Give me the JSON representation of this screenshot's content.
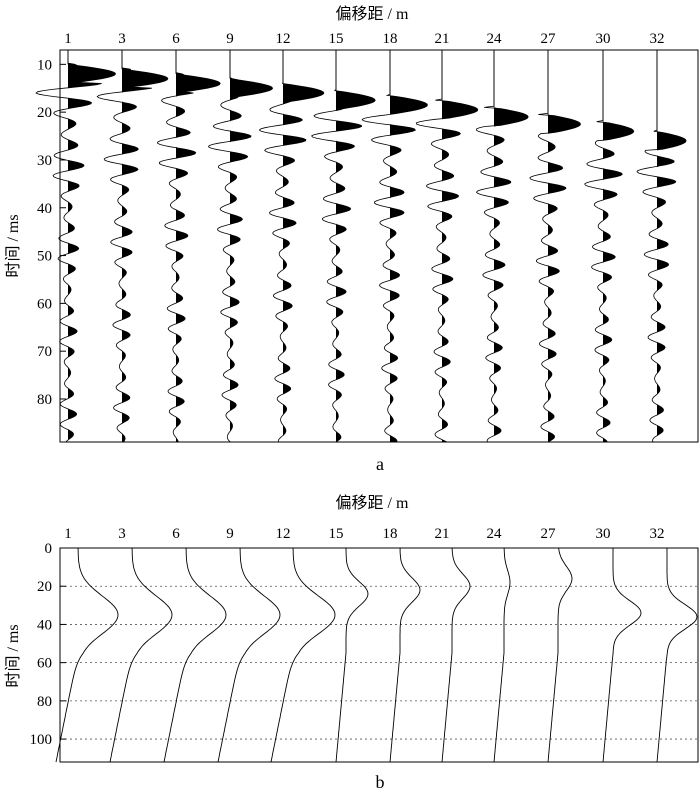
{
  "chart_data": [
    {
      "type": "line",
      "panel_label": "a",
      "xlabel": "偏移距 / m",
      "ylabel": "时间 / ms",
      "offsets": [
        "1",
        "3",
        "6",
        "9",
        "12",
        "15",
        "18",
        "21",
        "24",
        "27",
        "30",
        "32"
      ],
      "y_ticks": [
        10,
        20,
        30,
        40,
        50,
        60,
        70,
        80
      ],
      "ylim": [
        7,
        89
      ],
      "grid": false,
      "fill": "positive lobes filled black (variable-area wiggle traces)",
      "first_arrival_ms": [
        11,
        12,
        13,
        14,
        15,
        16.5,
        17.5,
        18.5,
        20,
        21.5,
        23,
        25
      ]
    },
    {
      "type": "line",
      "panel_label": "b",
      "xlabel": "偏移距 / m",
      "ylabel": "时间 / ms",
      "offsets": [
        "1",
        "3",
        "6",
        "9",
        "12",
        "15",
        "18",
        "21",
        "24",
        "27",
        "30",
        "32"
      ],
      "y_ticks": [
        0,
        20,
        40,
        60,
        80,
        100
      ],
      "ylim": [
        0,
        112
      ],
      "grid": "horizontal dotted lines at 20, 40, 60, 80, 100 ms",
      "peak_time_ms": [
        35,
        35,
        35,
        35,
        35,
        24,
        22,
        20,
        18,
        16,
        34,
        36
      ]
    }
  ],
  "colors": {
    "trace": "#000000",
    "background": "#ffffff",
    "grid": "#555555"
  }
}
